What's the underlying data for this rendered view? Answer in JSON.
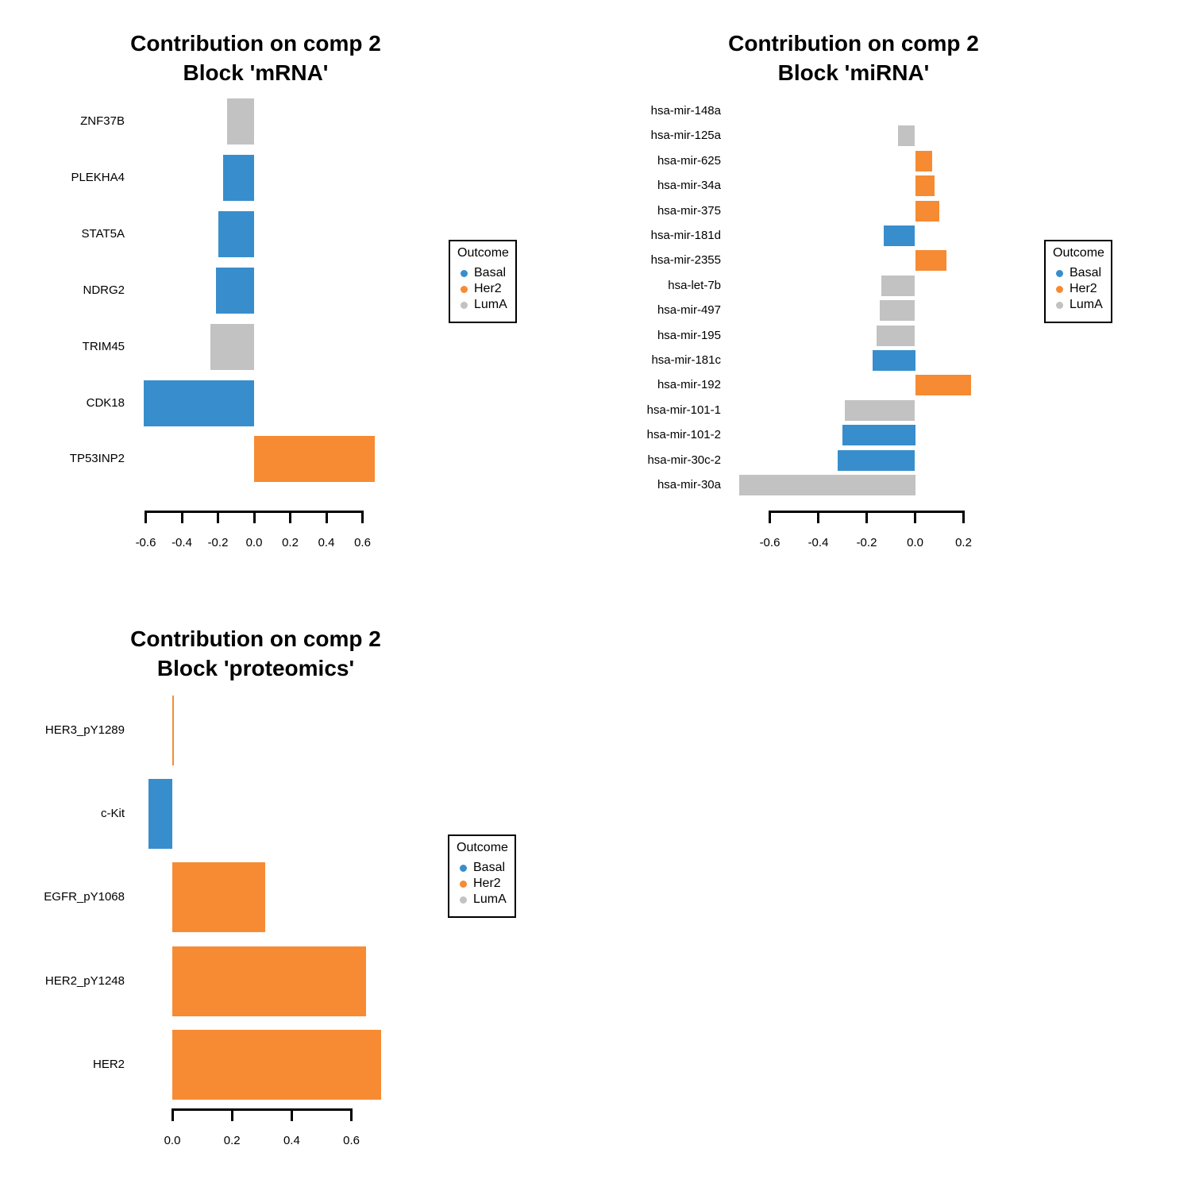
{
  "legend": {
    "title": "Outcome",
    "items": [
      {
        "label": "Basal",
        "color": "#388ECC"
      },
      {
        "label": "Her2",
        "color": "#F68B33"
      },
      {
        "label": "LumA",
        "color": "#C2C2C2"
      }
    ]
  },
  "chart_data": [
    {
      "type": "bar",
      "orientation": "horizontal",
      "title": "Contribution on comp 2",
      "subtitle": "Block 'mRNA'",
      "categories": [
        "ZNF37B",
        "PLEKHA4",
        "STAT5A",
        "NDRG2",
        "TRIM45",
        "CDK18",
        "TP53INP2"
      ],
      "values": [
        -0.15,
        -0.17,
        -0.2,
        -0.21,
        -0.24,
        -0.61,
        0.67
      ],
      "groups": [
        "LumA",
        "Basal",
        "Basal",
        "Basal",
        "LumA",
        "Basal",
        "Her2"
      ],
      "xticks": [
        -0.6,
        -0.4,
        -0.2,
        0,
        0.2,
        0.4,
        0.6
      ],
      "xlim": [
        -0.62,
        0.68
      ],
      "grid": false,
      "legend_position": "right"
    },
    {
      "type": "bar",
      "orientation": "horizontal",
      "title": "Contribution on comp 2",
      "subtitle": "Block 'miRNA'",
      "categories": [
        "hsa-mir-148a",
        "hsa-mir-125a",
        "hsa-mir-625",
        "hsa-mir-34a",
        "hsa-mir-375",
        "hsa-mir-181d",
        "hsa-mir-2355",
        "hsa-let-7b",
        "hsa-mir-497",
        "hsa-mir-195",
        "hsa-mir-181c",
        "hsa-mir-192",
        "hsa-mir-101-1",
        "hsa-mir-101-2",
        "hsa-mir-30c-2",
        "hsa-mir-30a"
      ],
      "values": [
        0,
        -0.07,
        0.07,
        0.08,
        0.1,
        -0.13,
        0.13,
        -0.14,
        -0.145,
        -0.16,
        -0.175,
        0.23,
        -0.29,
        -0.3,
        -0.32,
        -0.725
      ],
      "groups": [
        "LumA",
        "LumA",
        "Her2",
        "Her2",
        "Her2",
        "Basal",
        "Her2",
        "LumA",
        "LumA",
        "LumA",
        "Basal",
        "Her2",
        "LumA",
        "Basal",
        "Basal",
        "LumA"
      ],
      "xticks": [
        -0.6,
        -0.4,
        -0.2,
        0,
        0.2
      ],
      "xlim": [
        -0.74,
        0.24
      ],
      "grid": false,
      "legend_position": "right"
    },
    {
      "type": "bar",
      "orientation": "horizontal",
      "title": "Contribution on comp 2",
      "subtitle": "Block 'proteomics'",
      "categories": [
        "HER3_pY1289",
        "c-Kit",
        "EGFR_pY1068",
        "HER2_pY1248",
        "HER2"
      ],
      "values": [
        0.005,
        -0.08,
        0.31,
        0.65,
        0.7
      ],
      "groups": [
        "Her2",
        "Basal",
        "Her2",
        "Her2",
        "Her2"
      ],
      "xticks": [
        0,
        0.2,
        0.4,
        0.6
      ],
      "xlim": [
        -0.1,
        0.71
      ],
      "grid": false,
      "legend_position": "right"
    }
  ]
}
